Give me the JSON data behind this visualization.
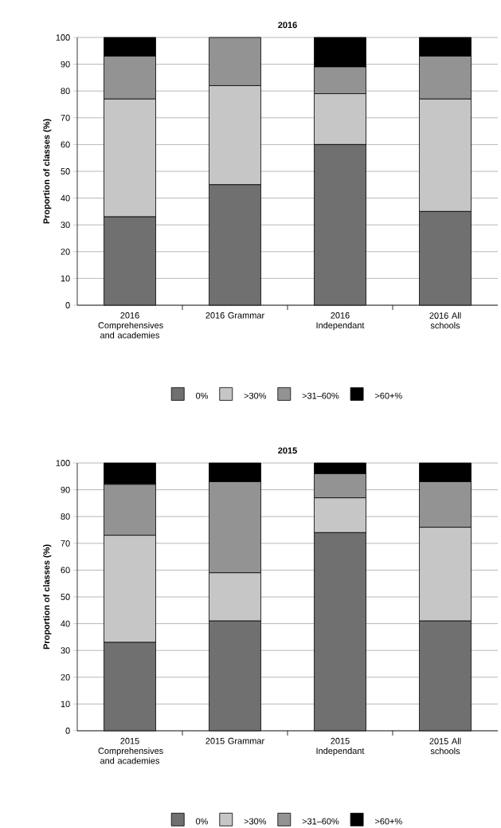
{
  "chart_data": [
    {
      "type": "bar",
      "stacked": true,
      "title": "2016",
      "ylabel": "Proportion of classes (%)",
      "categories": [
        "2016 Comprehensives and academies",
        "2016 Grammar",
        "2016 Independant",
        "2016 All schools"
      ],
      "series": [
        {
          "name": "0%",
          "color": "#707070",
          "values": [
            33,
            45,
            60,
            35
          ]
        },
        {
          "name": ">30%",
          "color": "#c6c6c6",
          "values": [
            44,
            37,
            19,
            42
          ]
        },
        {
          "name": ">31–60%",
          "color": "#939393",
          "values": [
            16,
            18,
            10,
            16
          ]
        },
        {
          "name": ">60+%",
          "color": "#000000",
          "values": [
            7,
            0,
            11,
            7
          ]
        }
      ],
      "ylim": [
        0,
        100
      ],
      "yticks": [
        0,
        10,
        20,
        30,
        40,
        50,
        60,
        70,
        80,
        90,
        100
      ],
      "grid": "y",
      "legend": "bottom"
    },
    {
      "type": "bar",
      "stacked": true,
      "title": "2015",
      "ylabel": "Proportion of classes (%)",
      "categories": [
        "2015 Comprehensives and academies",
        "2015 Grammar",
        "2015 Independant",
        "2015 All schools"
      ],
      "series": [
        {
          "name": "0%",
          "color": "#707070",
          "values": [
            33,
            41,
            74,
            41
          ]
        },
        {
          "name": ">30%",
          "color": "#c6c6c6",
          "values": [
            40,
            18,
            13,
            35
          ]
        },
        {
          "name": ">31–60%",
          "color": "#939393",
          "values": [
            19,
            34,
            9,
            17
          ]
        },
        {
          "name": ">60+%",
          "color": "#000000",
          "values": [
            8,
            7,
            4,
            7
          ]
        }
      ],
      "ylim": [
        0,
        100
      ],
      "yticks": [
        0,
        10,
        20,
        30,
        40,
        50,
        60,
        70,
        80,
        90,
        100
      ],
      "grid": "y",
      "legend": "bottom"
    }
  ]
}
